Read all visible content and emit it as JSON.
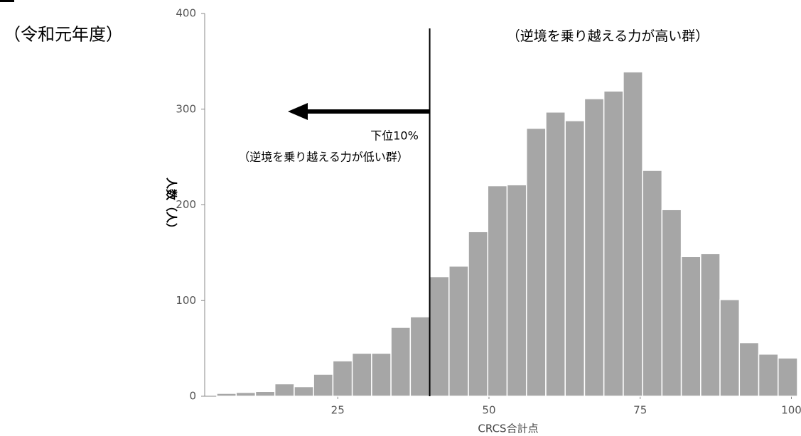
{
  "chart_data": {
    "type": "histogram",
    "subtitle": "（令和元年度）",
    "xlabel": "CRCS合計点",
    "ylabel": "人数（人）",
    "annotations": [
      "（逆境を乗り越える力が高い群）",
      "下位10%",
      "（逆境を乗り越える力が低い群）"
    ],
    "bins": [
      5,
      8.2,
      11.4,
      14.6,
      17.8,
      21,
      24.2,
      27.4,
      30.6,
      33.8,
      37,
      40.2,
      43.4,
      46.6,
      49.8,
      53,
      56.2,
      59.4,
      62.6,
      65.8,
      69,
      72.2,
      75.4,
      78.6,
      81.8,
      85,
      88.2,
      91.4,
      94.6,
      97.8,
      101
    ],
    "values": [
      3,
      4,
      5,
      13,
      10,
      23,
      37,
      45,
      45,
      72,
      83,
      125,
      136,
      172,
      220,
      221,
      280,
      297,
      288,
      311,
      319,
      339,
      236,
      195,
      146,
      149,
      101,
      56,
      44,
      40
    ],
    "color": "#a6a6a6",
    "xlim": [
      5,
      101
    ],
    "xticks": [
      25,
      50,
      75,
      100
    ],
    "ylim": [
      0,
      400
    ],
    "yticks": [
      0,
      100,
      200,
      300,
      400
    ]
  }
}
